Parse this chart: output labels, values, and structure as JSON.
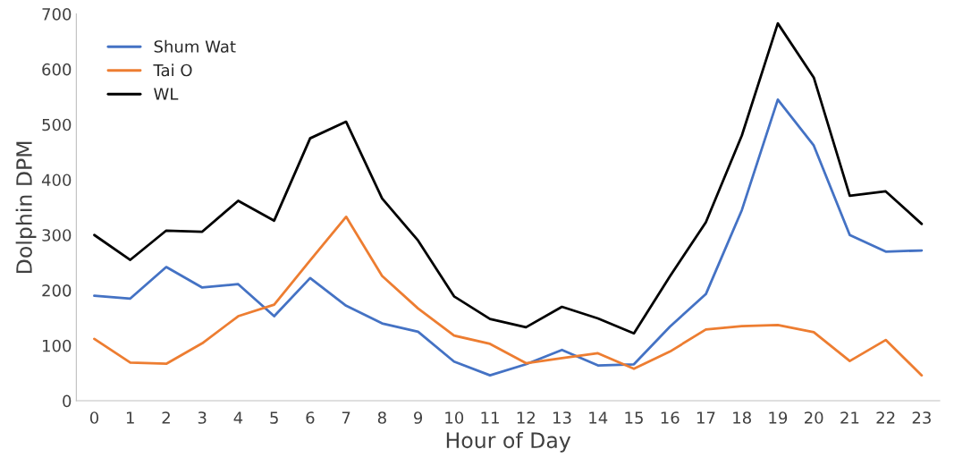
{
  "chart_data": {
    "type": "line",
    "xlabel": "Hour of Day",
    "ylabel": "Dolphin DPM",
    "categories": [
      "0",
      "1",
      "2",
      "3",
      "4",
      "5",
      "6",
      "7",
      "8",
      "9",
      "10",
      "11",
      "12",
      "13",
      "14",
      "15",
      "16",
      "17",
      "18",
      "19",
      "20",
      "21",
      "22",
      "23"
    ],
    "series": [
      {
        "name": "Shum Wat",
        "color": "#4472c4",
        "values": [
          190,
          185,
          242,
          205,
          211,
          153,
          222,
          172,
          140,
          125,
          71,
          46,
          66,
          92,
          64,
          66,
          134,
          193,
          345,
          545,
          462,
          300,
          270,
          272
        ]
      },
      {
        "name": "Tai O",
        "color": "#ed7d31",
        "values": [
          112,
          69,
          67,
          104,
          153,
          174,
          254,
          333,
          226,
          167,
          118,
          103,
          68,
          77,
          86,
          58,
          89,
          129,
          135,
          137,
          124,
          72,
          110,
          46
        ]
      },
      {
        "name": "WL",
        "color": "#000000",
        "values": [
          300,
          255,
          308,
          306,
          362,
          326,
          475,
          505,
          366,
          290,
          189,
          148,
          133,
          170,
          149,
          122,
          225,
          323,
          480,
          683,
          585,
          371,
          379,
          320
        ]
      }
    ],
    "ylim": [
      0,
      700
    ],
    "yticks": [
      0,
      100,
      200,
      300,
      400,
      500,
      600,
      700
    ],
    "grid": false,
    "legend": "top left",
    "marker": "none",
    "line_style": "solid"
  }
}
